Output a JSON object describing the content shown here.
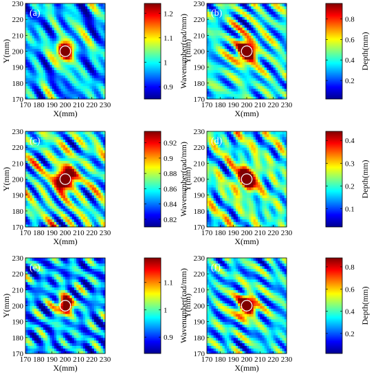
{
  "colormap": [
    "#00008f",
    "#0000ff",
    "#0080ff",
    "#00ffff",
    "#80ff80",
    "#ffff00",
    "#ff8000",
    "#ff0000",
    "#800000"
  ],
  "circle_color": "#ffffff",
  "chart_data": [
    {
      "type": "heatmap",
      "panel_label": "(a)",
      "xlabel": "X(mm)",
      "ylabel": "Y(mm)",
      "colorbar_label": "Wavenumber(rad/mm)",
      "xlim": [
        170,
        230
      ],
      "ylim": [
        170,
        230
      ],
      "x_ticks": [
        "170",
        "180",
        "190",
        "200",
        "210",
        "220",
        "230"
      ],
      "y_ticks": [
        "170",
        "180",
        "190",
        "200",
        "210",
        "220",
        "230"
      ],
      "clim": [
        0.85,
        1.24
      ],
      "colorbar_ticks": [
        {
          "value": 0.9,
          "label": "0.9"
        },
        {
          "value": 1.0,
          "label": "1"
        },
        {
          "value": 1.1,
          "label": "1.1"
        },
        {
          "value": 1.2,
          "label": "1.2"
        }
      ],
      "defect": {
        "cx": 200,
        "cy": 200,
        "radius": 4
      },
      "hot_spot": {
        "cx": 200,
        "cy": 200.5,
        "sigma": 4.0
      },
      "background": 0.3
    },
    {
      "type": "heatmap",
      "panel_label": "(b)",
      "xlabel": "X(mm)",
      "ylabel": "Y(mm)",
      "colorbar_label": "Depth(mm)",
      "xlim": [
        170,
        230
      ],
      "ylim": [
        170,
        230
      ],
      "x_ticks": [
        "170",
        "180",
        "190",
        "200",
        "210",
        "220",
        "230"
      ],
      "y_ticks": [
        "170",
        "180",
        "190",
        "200",
        "210",
        "220",
        "230"
      ],
      "clim": [
        0.02,
        0.95
      ],
      "colorbar_ticks": [
        {
          "value": 0.2,
          "label": "0.2"
        },
        {
          "value": 0.4,
          "label": "0.4"
        },
        {
          "value": 0.6,
          "label": "0.6"
        },
        {
          "value": 0.8,
          "label": "0.8"
        }
      ],
      "defect": {
        "cx": 200,
        "cy": 200,
        "radius": 4
      },
      "hot_spot": {
        "cx": 199.5,
        "cy": 200,
        "sigma": 4.5
      },
      "background": 0.38
    },
    {
      "type": "heatmap",
      "panel_label": "(c)",
      "xlabel": "X(mm)",
      "ylabel": "Y(mm)",
      "colorbar_label": "Wavenumber(rad/mm)",
      "xlim": [
        170,
        230
      ],
      "ylim": [
        170,
        230
      ],
      "x_ticks": [
        "170",
        "180",
        "190",
        "200",
        "210",
        "220",
        "230"
      ],
      "y_ticks": [
        "170",
        "180",
        "190",
        "200",
        "210",
        "220",
        "230"
      ],
      "clim": [
        0.81,
        0.935
      ],
      "colorbar_ticks": [
        {
          "value": 0.82,
          "label": "0.82"
        },
        {
          "value": 0.84,
          "label": "0.84"
        },
        {
          "value": 0.86,
          "label": "0.86"
        },
        {
          "value": 0.88,
          "label": "0.88"
        },
        {
          "value": 0.9,
          "label": "0.9"
        },
        {
          "value": 0.92,
          "label": "0.92"
        }
      ],
      "defect": {
        "cx": 200,
        "cy": 200,
        "radius": 4
      },
      "hot_spot": {
        "cx": 200,
        "cy": 200.5,
        "sigma": 4.5
      },
      "background": 0.4
    },
    {
      "type": "heatmap",
      "panel_label": "(d)",
      "xlabel": "X(mm)",
      "ylabel": "Y(mm)",
      "colorbar_label": "Depth(mm)",
      "xlim": [
        170,
        230
      ],
      "ylim": [
        170,
        230
      ],
      "x_ticks": [
        "170",
        "180",
        "190",
        "200",
        "210",
        "220",
        "230"
      ],
      "y_ticks": [
        "170",
        "180",
        "190",
        "200",
        "210",
        "220",
        "230"
      ],
      "clim": [
        0.02,
        0.44
      ],
      "colorbar_ticks": [
        {
          "value": 0.1,
          "label": "0.1"
        },
        {
          "value": 0.2,
          "label": "0.2"
        },
        {
          "value": 0.3,
          "label": "0.3"
        },
        {
          "value": 0.4,
          "label": "0.4"
        }
      ],
      "defect": {
        "cx": 200,
        "cy": 200,
        "radius": 4
      },
      "hot_spot": {
        "cx": 200,
        "cy": 200.5,
        "sigma": 4.5
      },
      "background": 0.42
    },
    {
      "type": "heatmap",
      "panel_label": "(e)",
      "xlabel": "X(mm)",
      "ylabel": "Y(mm)",
      "colorbar_label": "Wavenumber(rad/mm)",
      "xlim": [
        170,
        230
      ],
      "ylim": [
        170,
        230
      ],
      "x_ticks": [
        "170",
        "180",
        "190",
        "200",
        "210",
        "220",
        "230"
      ],
      "y_ticks": [
        "170",
        "180",
        "190",
        "200",
        "210",
        "220",
        "230"
      ],
      "clim": [
        0.84,
        1.19
      ],
      "colorbar_ticks": [
        {
          "value": 0.9,
          "label": "0.9"
        },
        {
          "value": 1.0,
          "label": "1"
        },
        {
          "value": 1.1,
          "label": "1.1"
        }
      ],
      "defect": {
        "cx": 200,
        "cy": 200,
        "radius": 4
      },
      "hot_spot": {
        "cx": 200,
        "cy": 200.5,
        "sigma": 3.6
      },
      "background": 0.28
    },
    {
      "type": "heatmap",
      "panel_label": "(f)",
      "xlabel": "X(mm)",
      "ylabel": "Y(mm)",
      "colorbar_label": "Depth(mm)",
      "xlim": [
        170,
        230
      ],
      "ylim": [
        170,
        230
      ],
      "x_ticks": [
        "170",
        "180",
        "190",
        "200",
        "210",
        "220",
        "230"
      ],
      "y_ticks": [
        "170",
        "180",
        "190",
        "200",
        "210",
        "220",
        "230"
      ],
      "clim": [
        0.02,
        0.88
      ],
      "colorbar_ticks": [
        {
          "value": 0.2,
          "label": "0.2"
        },
        {
          "value": 0.4,
          "label": "0.4"
        },
        {
          "value": 0.6,
          "label": "0.6"
        },
        {
          "value": 0.8,
          "label": "0.8"
        }
      ],
      "defect": {
        "cx": 200,
        "cy": 200,
        "radius": 4
      },
      "hot_spot": {
        "cx": 200,
        "cy": 200,
        "sigma": 4.2
      },
      "background": 0.35
    }
  ]
}
